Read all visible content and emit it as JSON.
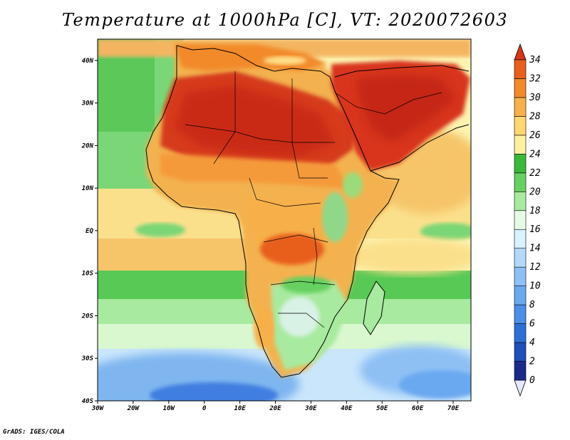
{
  "title": "Temperature at 1000hPa [C], VT: 2020072603",
  "credit": "GrADS: IGES/COLA",
  "map": {
    "lat_labels": [
      "40N",
      "30N",
      "20N",
      "10N",
      "EQ",
      "10S",
      "20S",
      "30S",
      "40S"
    ],
    "lon_labels": [
      "30W",
      "20W",
      "10W",
      "0",
      "10E",
      "20E",
      "30E",
      "40E",
      "50E",
      "60E",
      "70E"
    ],
    "lon_range": [
      -30,
      75
    ],
    "lat_range": [
      -40,
      45
    ]
  },
  "colorbar": {
    "labels": [
      "0",
      "2",
      "4",
      "6",
      "8",
      "10",
      "12",
      "14",
      "16",
      "18",
      "20",
      "22",
      "24",
      "26",
      "28",
      "30",
      "32",
      "34"
    ],
    "colors": [
      "#e6e8ff",
      "#1a2a8a",
      "#1f4fb8",
      "#2b6fd6",
      "#4a8ee8",
      "#6aa8f0",
      "#8fc0f5",
      "#b4d8f9",
      "#d8f2ff",
      "#e6fbe6",
      "#a8eaa0",
      "#66d060",
      "#3ab83a",
      "#fff0a0",
      "#ffd670",
      "#f7b04a",
      "#f28a2a",
      "#e85f1e",
      "#d8361a"
    ]
  }
}
